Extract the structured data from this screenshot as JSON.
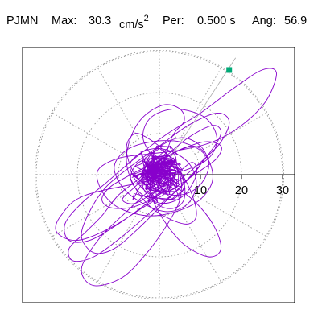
{
  "header": {
    "station": "PJMN",
    "max_label": "Max:",
    "max_value": "30.3",
    "max_unit": "cm/s",
    "max_unit_exp": "2",
    "per_label": "Per:",
    "per_value": "0.500 s",
    "ang_label": "Ang:",
    "ang_value": "56.9"
  },
  "chart_data": {
    "type": "polar-particle-motion",
    "radial_ticks": [
      10,
      20,
      30
    ],
    "rmax": 30.3,
    "angle_gridlines_deg": [
      0,
      30,
      60,
      90,
      120,
      150,
      180,
      210,
      240,
      270,
      300,
      330
    ],
    "grid": "dotted",
    "orientation_line_deg": 56.9,
    "trace_color": "#8800cc",
    "marker_color": "#00aa77",
    "trace_points": [
      [
        -2,
        1
      ],
      [
        3,
        2
      ],
      [
        6,
        -1
      ],
      [
        4,
        -4
      ],
      [
        -1,
        -3
      ],
      [
        -4,
        0
      ],
      [
        -2,
        3
      ],
      [
        2,
        4
      ],
      [
        5,
        1
      ],
      [
        6,
        -3
      ],
      [
        3,
        -6
      ],
      [
        -2,
        -5
      ],
      [
        -6,
        -1
      ],
      [
        -7,
        3
      ],
      [
        -3,
        6
      ],
      [
        2,
        6
      ],
      [
        7,
        3
      ],
      [
        9,
        -2
      ],
      [
        7,
        -7
      ],
      [
        2,
        -9
      ],
      [
        -4,
        -7
      ],
      [
        -9,
        -3
      ],
      [
        -11,
        2
      ],
      [
        -8,
        6
      ],
      [
        -2,
        8
      ],
      [
        5,
        8
      ],
      [
        11,
        5
      ],
      [
        13,
        -1
      ],
      [
        10,
        -6
      ],
      [
        4,
        -9
      ],
      [
        -3,
        -10
      ],
      [
        -10,
        -8
      ],
      [
        -14,
        -4
      ],
      [
        -15,
        1
      ],
      [
        -10,
        4
      ],
      [
        -3,
        5
      ],
      [
        5,
        6
      ],
      [
        13,
        8
      ],
      [
        20,
        12
      ],
      [
        26,
        18
      ],
      [
        28.5,
        24.8
      ],
      [
        25,
        25.5
      ],
      [
        18,
        21
      ],
      [
        10,
        15
      ],
      [
        2,
        10
      ],
      [
        -6,
        4
      ],
      [
        -13,
        -2
      ],
      [
        -19,
        -7
      ],
      [
        -23,
        -12
      ],
      [
        -22,
        -16
      ],
      [
        -17,
        -16
      ],
      [
        -10,
        -12
      ],
      [
        -3,
        -7
      ],
      [
        4,
        -2
      ],
      [
        10,
        3
      ],
      [
        15,
        8
      ],
      [
        17,
        13
      ],
      [
        14,
        15
      ],
      [
        7,
        12
      ],
      [
        0,
        7
      ],
      [
        -7,
        2
      ],
      [
        -13,
        -3
      ],
      [
        -17,
        -9
      ],
      [
        -19,
        -15
      ],
      [
        -16,
        -19
      ],
      [
        -11,
        -18
      ],
      [
        -5,
        -13
      ],
      [
        1,
        -7
      ],
      [
        7,
        -1
      ],
      [
        12,
        5
      ],
      [
        15,
        10
      ],
      [
        13,
        12
      ],
      [
        7,
        9
      ],
      [
        1,
        4
      ],
      [
        -5,
        -1
      ],
      [
        -10,
        -5
      ],
      [
        -14,
        -10
      ],
      [
        -18,
        -14
      ],
      [
        -22,
        -18
      ],
      [
        -21,
        -21
      ],
      [
        -16,
        -20
      ],
      [
        -9,
        -15
      ],
      [
        -2,
        -9
      ],
      [
        4,
        -4
      ],
      [
        9,
        1
      ],
      [
        11,
        5
      ],
      [
        8,
        7
      ],
      [
        3,
        5
      ],
      [
        -2,
        1
      ],
      [
        -6,
        -3
      ],
      [
        -9,
        -6
      ],
      [
        -6,
        -7
      ],
      [
        -1,
        -4
      ],
      [
        4,
        0
      ],
      [
        8,
        3
      ],
      [
        9,
        0
      ],
      [
        6,
        -5
      ],
      [
        1,
        -7
      ],
      [
        -4,
        -5
      ],
      [
        -7,
        -1
      ],
      [
        -5,
        3
      ],
      [
        0,
        4
      ],
      [
        4,
        2
      ],
      [
        5,
        -2
      ],
      [
        2,
        -4
      ],
      [
        -2,
        -3
      ],
      [
        -3,
        0
      ],
      [
        -1,
        2
      ],
      [
        1,
        1
      ],
      [
        0,
        -1
      ],
      [
        3,
        9
      ],
      [
        6,
        13
      ],
      [
        5,
        16
      ],
      [
        1,
        17
      ],
      [
        -4,
        14
      ],
      [
        -7,
        9
      ],
      [
        -8,
        3
      ],
      [
        -6,
        -3
      ],
      [
        -2,
        -8
      ],
      [
        3,
        -11
      ],
      [
        7,
        -12
      ],
      [
        9,
        -10
      ],
      [
        8,
        -5
      ],
      [
        5,
        1
      ],
      [
        1,
        6
      ],
      [
        -3,
        9
      ],
      [
        -6,
        10
      ],
      [
        -8,
        7
      ],
      [
        -7,
        2
      ],
      [
        -4,
        -2
      ],
      [
        0,
        -4
      ],
      [
        4,
        -5
      ],
      [
        8,
        -4
      ],
      [
        11,
        -1
      ],
      [
        12,
        3
      ],
      [
        10,
        7
      ],
      [
        6,
        9
      ],
      [
        2,
        8
      ],
      [
        -2,
        5
      ],
      [
        -4,
        1
      ],
      [
        -4,
        -3
      ],
      [
        -2,
        -6
      ],
      [
        1,
        -8
      ],
      [
        4,
        -8
      ],
      [
        6,
        -6
      ],
      [
        6,
        -2
      ],
      [
        4,
        2
      ],
      [
        1,
        4
      ],
      [
        -2,
        4
      ],
      [
        -3,
        2
      ],
      [
        -2,
        0
      ],
      [
        0,
        -1
      ],
      [
        -18,
        -5
      ],
      [
        -24,
        -10
      ],
      [
        -25,
        -14
      ],
      [
        -20,
        -16
      ],
      [
        -12,
        -13
      ],
      [
        -4,
        -8
      ],
      [
        4,
        -3
      ],
      [
        10,
        1
      ],
      [
        14,
        4
      ],
      [
        15,
        7
      ],
      [
        11,
        8
      ],
      [
        5,
        6
      ],
      [
        -1,
        3
      ],
      [
        -7,
        0
      ],
      [
        -12,
        -3
      ],
      [
        -14,
        -6
      ],
      [
        -12,
        -8
      ],
      [
        -7,
        -8
      ],
      [
        -2,
        -6
      ],
      [
        2,
        -3
      ],
      [
        4,
        0
      ],
      [
        3,
        2
      ],
      [
        0,
        2
      ],
      [
        -2,
        0
      ],
      [
        -1,
        -1
      ],
      [
        0,
        0
      ],
      [
        -1,
        3
      ],
      [
        -4,
        9
      ],
      [
        -2,
        14
      ],
      [
        4,
        16
      ],
      [
        11,
        14
      ],
      [
        14,
        9
      ],
      [
        12,
        4
      ],
      [
        6,
        1
      ],
      [
        0,
        0
      ],
      [
        -3,
        -2
      ],
      [
        -1,
        -4
      ],
      [
        2,
        -3
      ],
      [
        1,
        -1
      ],
      [
        -8,
        -9
      ],
      [
        -15,
        -16
      ],
      [
        -19,
        -23
      ],
      [
        -16,
        -27
      ],
      [
        -9,
        -25
      ],
      [
        -3,
        -19
      ],
      [
        2,
        -12
      ],
      [
        5,
        -6
      ],
      [
        5,
        0
      ],
      [
        2,
        3
      ],
      [
        -1,
        2
      ],
      [
        0,
        0
      ],
      [
        8,
        -6
      ],
      [
        13,
        -12
      ],
      [
        15,
        -18
      ],
      [
        12,
        -20
      ],
      [
        6,
        -17
      ],
      [
        1,
        -11
      ],
      [
        -2,
        -5
      ],
      [
        -2,
        -1
      ],
      [
        0,
        0
      ]
    ],
    "end_marker_point": [
      17,
      25.5
    ]
  }
}
